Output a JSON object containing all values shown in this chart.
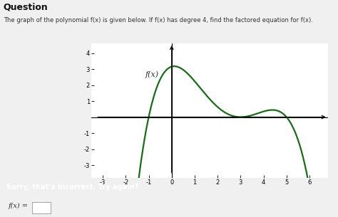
{
  "title_main": "Question",
  "subtitle": "The graph of the polynomial f(x) is given below. If f(x) has degree 4, find the factored equation for f(x).",
  "ylabel": "f(x)",
  "xlim": [
    -3.5,
    6.8
  ],
  "ylim": [
    -3.8,
    4.6
  ],
  "xticks": [
    -3,
    -2,
    -1,
    0,
    1,
    2,
    3,
    4,
    5,
    6
  ],
  "yticks": [
    -3,
    -2,
    -1,
    1,
    2,
    3,
    4
  ],
  "curve_color": "#1a6b1a",
  "curve_linewidth": 1.6,
  "background_color": "#f0f0f0",
  "plot_bg": "#ffffff",
  "error_bar_color": "#b94040",
  "error_bar_text": "Sorry, that’s incorrect. Try again?",
  "footer_text": "f(x) =",
  "scale": 0.07,
  "x_start": -1.6,
  "x_end": 6.2
}
